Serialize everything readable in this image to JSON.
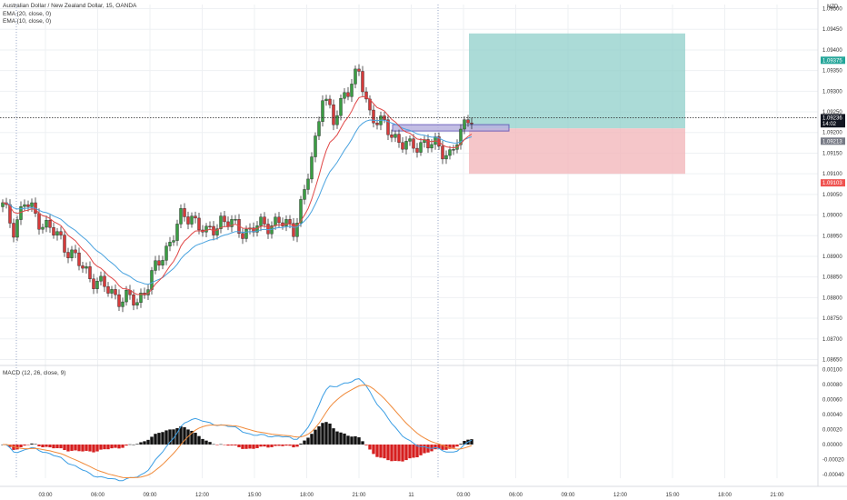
{
  "header": {
    "symbol": "Australian Dollar / New Zealand Dollar, 15, OANDA",
    "ema20": "EMA (20, close, 0)",
    "ema10": "EMA (10, close, 0)",
    "currency": "NZD",
    "macd_label": "MACD (12, 26, close, 9)"
  },
  "colors": {
    "up": "#3a9d43",
    "down": "#d63a3a",
    "ema20": "#4aa3df",
    "ema10": "#e04747",
    "macd_line": "#3b9ee4",
    "signal_line": "#f08a3a",
    "hist_pos": "#111111",
    "hist_neg": "#d61f1f",
    "profit_zone": "#8fcfc9",
    "loss_zone": "#f2b8bb",
    "grid": "#eef0f3"
  },
  "chart_data": [
    {
      "type": "candlestick",
      "title": "Australian Dollar / New Zealand Dollar, 15, OANDA",
      "series": [
        {
          "name": "EMA (20, close, 0)"
        },
        {
          "name": "EMA (10, close, 0)"
        }
      ],
      "x_ticks": [
        "03:00",
        "06:00",
        "09:00",
        "12:00",
        "15:00",
        "18:00",
        "21:00",
        "11",
        "03:00",
        "06:00",
        "09:00",
        "12:00",
        "15:00",
        "18:00",
        "21:00"
      ],
      "y_ticks": [
        "1.09500",
        "1.09450",
        "1.09400",
        "1.09350",
        "1.09300",
        "1.09250",
        "1.09200",
        "1.09150",
        "1.09100",
        "1.09050",
        "1.09000",
        "1.08950",
        "1.08900",
        "1.08850",
        "1.08800",
        "1.08750",
        "1.08700",
        "1.08650"
      ],
      "ylim": [
        1.0864,
        1.0951
      ],
      "price_tags": [
        {
          "value": "1.09375",
          "color": "#26a69a",
          "level": 1.09375
        },
        {
          "value": "1.09236",
          "color": "#131722",
          "level": 1.09236
        },
        {
          "value": "14:02",
          "color": "#131722",
          "level": 1.09221
        },
        {
          "value": "1.09213",
          "color": "#787b86",
          "level": 1.09179
        },
        {
          "value": "1.09103",
          "color": "#ef5350",
          "level": 1.09078
        }
      ],
      "position": {
        "entry": 1.0921,
        "target": 1.0944,
        "stop": 1.091
      },
      "anchors": [
        [
          0,
          1.0902
        ],
        [
          3,
          1.0897
        ],
        [
          6,
          1.0903
        ],
        [
          10,
          1.0899
        ],
        [
          16,
          1.0894
        ],
        [
          22,
          1.0887
        ],
        [
          27,
          1.0883
        ],
        [
          32,
          1.088
        ],
        [
          37,
          1.0879
        ],
        [
          41,
          1.0885
        ],
        [
          45,
          1.0892
        ],
        [
          49,
          1.0899
        ],
        [
          52,
          1.09
        ],
        [
          56,
          1.0895
        ],
        [
          60,
          1.0899
        ],
        [
          64,
          1.0897
        ],
        [
          68,
          1.0896
        ],
        [
          72,
          1.0898
        ],
        [
          76,
          1.0898
        ],
        [
          80,
          1.0897
        ],
        [
          83,
          1.0905
        ],
        [
          86,
          1.0918
        ],
        [
          88,
          1.093
        ],
        [
          91,
          1.0922
        ],
        [
          94,
          1.093
        ],
        [
          98,
          1.0934
        ],
        [
          101,
          1.0925
        ],
        [
          104,
          1.0922
        ],
        [
          108,
          1.0919
        ],
        [
          112,
          1.0916
        ],
        [
          116,
          1.0918
        ],
        [
          120,
          1.0916
        ],
        [
          123,
          1.0915
        ],
        [
          126,
          1.0919
        ],
        [
          128,
          1.0924
        ],
        [
          129,
          1.0924
        ]
      ]
    },
    {
      "type": "macd",
      "title": "MACD (12, 26, close, 9)",
      "series": [
        {
          "name": "MACD"
        },
        {
          "name": "Signal"
        }
      ],
      "y_ticks": [
        "0.00100",
        "0.00080",
        "0.00060",
        "0.00040",
        "0.00020",
        "0.00000",
        "-0.00020",
        "-0.00040"
      ],
      "ylim": [
        -0.00045,
        0.00102
      ]
    }
  ]
}
